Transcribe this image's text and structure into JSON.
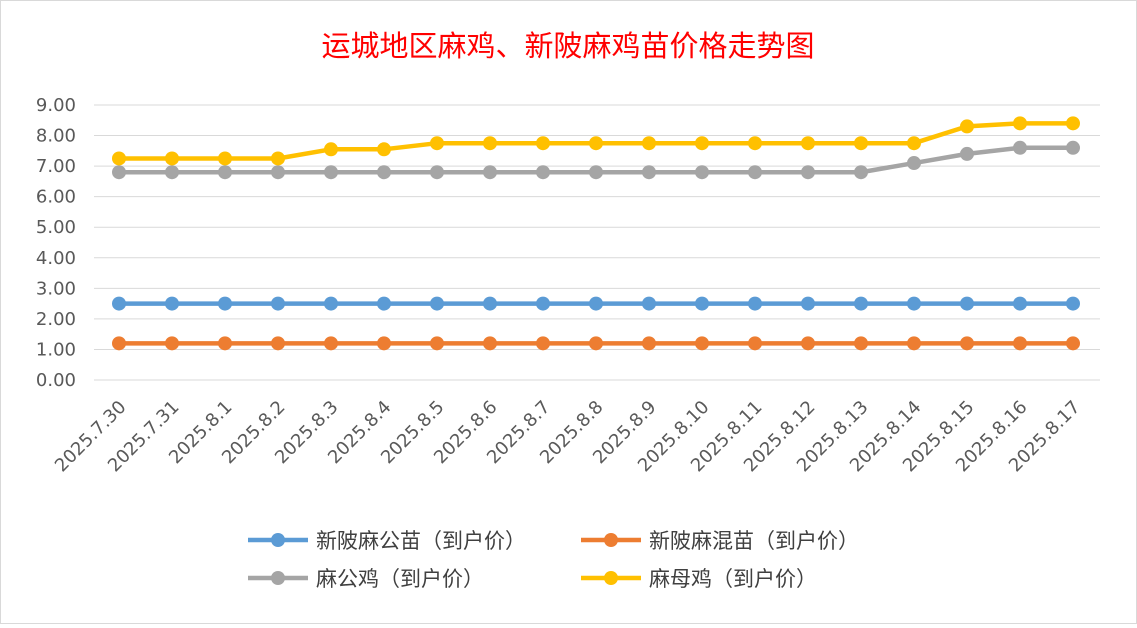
{
  "chart_data": {
    "type": "line",
    "title": "运城地区麻鸡、新陂麻鸡苗价格走势图",
    "title_color": "#ff0000",
    "xlabel": "",
    "ylabel": "",
    "ylim": [
      0,
      9
    ],
    "y_ticks": [
      "0.00",
      "1.00",
      "2.00",
      "3.00",
      "4.00",
      "5.00",
      "6.00",
      "7.00",
      "8.00",
      "9.00"
    ],
    "grid": true,
    "legend_position": "bottom",
    "categories": [
      "2025.7.30",
      "2025.7.31",
      "2025.8.1",
      "2025.8.2",
      "2025.8.3",
      "2025.8.4",
      "2025.8.5",
      "2025.8.6",
      "2025.8.7",
      "2025.8.8",
      "2025.8.9",
      "2025.8.10",
      "2025.8.11",
      "2025.8.12",
      "2025.8.13",
      "2025.8.14",
      "2025.8.15",
      "2025.8.16",
      "2025.8.17"
    ],
    "series": [
      {
        "name": "新陂麻公苗（到户价）",
        "color": "#5b9bd5",
        "values": [
          2.5,
          2.5,
          2.5,
          2.5,
          2.5,
          2.5,
          2.5,
          2.5,
          2.5,
          2.5,
          2.5,
          2.5,
          2.5,
          2.5,
          2.5,
          2.5,
          2.5,
          2.5,
          2.5
        ]
      },
      {
        "name": "新陂麻混苗（到户价）",
        "color": "#ed7d31",
        "values": [
          1.2,
          1.2,
          1.2,
          1.2,
          1.2,
          1.2,
          1.2,
          1.2,
          1.2,
          1.2,
          1.2,
          1.2,
          1.2,
          1.2,
          1.2,
          1.2,
          1.2,
          1.2,
          1.2
        ]
      },
      {
        "name": "麻公鸡（到户价）",
        "color": "#a5a5a5",
        "values": [
          6.8,
          6.8,
          6.8,
          6.8,
          6.8,
          6.8,
          6.8,
          6.8,
          6.8,
          6.8,
          6.8,
          6.8,
          6.8,
          6.8,
          6.8,
          7.1,
          7.4,
          7.6,
          7.6
        ]
      },
      {
        "name": "麻母鸡（到户价）",
        "color": "#ffc000",
        "values": [
          7.25,
          7.25,
          7.25,
          7.25,
          7.55,
          7.55,
          7.75,
          7.75,
          7.75,
          7.75,
          7.75,
          7.75,
          7.75,
          7.75,
          7.75,
          7.75,
          8.3,
          8.4,
          8.4
        ]
      }
    ]
  }
}
